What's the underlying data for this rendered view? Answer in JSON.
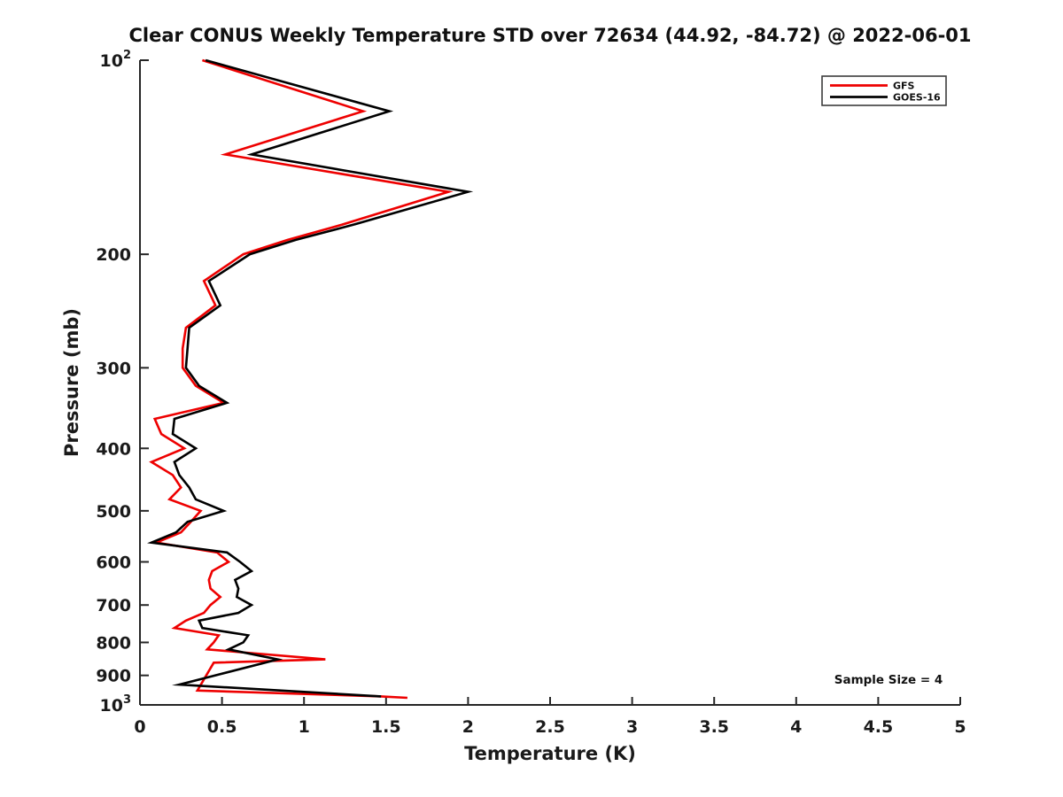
{
  "title": "Clear CONUS Weekly Temperature STD over 72634 (44.92, -84.72) @ 2022-06-01",
  "axes": {
    "x": {
      "label": "Temperature (K)"
    },
    "y": {
      "label": "Pressure (mb)"
    }
  },
  "legend": {
    "items": [
      {
        "label": "GFS",
        "color": "#ee0000"
      },
      {
        "label": "GOES-16",
        "color": "#000000"
      }
    ]
  },
  "annotation": {
    "text": "Sample Size = 4"
  },
  "colors": {
    "axis": "#262626",
    "tick_text": "#1a1a1a",
    "gfs_line": "#ee0000",
    "goes_line": "#000000",
    "legend_border": "#3c3c3c"
  },
  "chart_data": {
    "type": "line",
    "title": "Clear CONUS Weekly Temperature STD over 72634 (44.92, -84.72) @ 2022-06-01",
    "xlabel": "Temperature (K)",
    "ylabel": "Pressure (mb)",
    "xlim": [
      0,
      5
    ],
    "ylim": [
      100,
      1000
    ],
    "yscale": "log10-reversed",
    "grid": false,
    "legend_position": "top-right",
    "annotation": "Sample Size = 4",
    "xticks": [
      {
        "value": 0,
        "label": "0"
      },
      {
        "value": 0.5,
        "label": "0.5"
      },
      {
        "value": 1,
        "label": "1"
      },
      {
        "value": 1.5,
        "label": "1.5"
      },
      {
        "value": 2,
        "label": "2"
      },
      {
        "value": 2.5,
        "label": "2.5"
      },
      {
        "value": 3,
        "label": "3"
      },
      {
        "value": 3.5,
        "label": "3.5"
      },
      {
        "value": 4,
        "label": "4"
      },
      {
        "value": 4.5,
        "label": "4.5"
      },
      {
        "value": 5,
        "label": "5"
      }
    ],
    "yticks": [
      {
        "value": 100,
        "label": "10",
        "sup": "2"
      },
      {
        "value": 200,
        "label": "200"
      },
      {
        "value": 300,
        "label": "300"
      },
      {
        "value": 400,
        "label": "400"
      },
      {
        "value": 500,
        "label": "500"
      },
      {
        "value": 600,
        "label": "600"
      },
      {
        "value": 700,
        "label": "700"
      },
      {
        "value": 800,
        "label": "800"
      },
      {
        "value": 900,
        "label": "900"
      },
      {
        "value": 1000,
        "label": "10",
        "sup": "3"
      }
    ],
    "series": [
      {
        "name": "GFS",
        "color": "#ee0000",
        "points_format": "[pressure_mb, temperature_std_K]",
        "points": [
          [
            100,
            0.38
          ],
          [
            120,
            1.36
          ],
          [
            140,
            0.52
          ],
          [
            160,
            1.88
          ],
          [
            180,
            1.23
          ],
          [
            190,
            0.9
          ],
          [
            200,
            0.63
          ],
          [
            220,
            0.39
          ],
          [
            240,
            0.46
          ],
          [
            260,
            0.28
          ],
          [
            280,
            0.26
          ],
          [
            300,
            0.26
          ],
          [
            320,
            0.34
          ],
          [
            340,
            0.51
          ],
          [
            360,
            0.09
          ],
          [
            380,
            0.13
          ],
          [
            400,
            0.27
          ],
          [
            420,
            0.07
          ],
          [
            440,
            0.2
          ],
          [
            460,
            0.25
          ],
          [
            480,
            0.18
          ],
          [
            500,
            0.37
          ],
          [
            520,
            0.31
          ],
          [
            540,
            0.25
          ],
          [
            560,
            0.1
          ],
          [
            580,
            0.47
          ],
          [
            600,
            0.54
          ],
          [
            620,
            0.44
          ],
          [
            640,
            0.42
          ],
          [
            660,
            0.43
          ],
          [
            680,
            0.49
          ],
          [
            700,
            0.43
          ],
          [
            720,
            0.39
          ],
          [
            740,
            0.28
          ],
          [
            760,
            0.21
          ],
          [
            780,
            0.48
          ],
          [
            800,
            0.45
          ],
          [
            820,
            0.41
          ],
          [
            850,
            1.13
          ],
          [
            860,
            0.45
          ],
          [
            950,
            0.35
          ],
          [
            970,
            1.47
          ],
          [
            975,
            1.63
          ]
        ]
      },
      {
        "name": "GOES-16",
        "color": "#000000",
        "points_format": "[pressure_mb, temperature_std_K]",
        "points": [
          [
            100,
            0.4
          ],
          [
            120,
            1.52
          ],
          [
            140,
            0.68
          ],
          [
            160,
            2.0
          ],
          [
            180,
            1.3
          ],
          [
            190,
            0.95
          ],
          [
            200,
            0.67
          ],
          [
            220,
            0.42
          ],
          [
            240,
            0.49
          ],
          [
            260,
            0.3
          ],
          [
            280,
            0.29
          ],
          [
            300,
            0.28
          ],
          [
            320,
            0.36
          ],
          [
            340,
            0.53
          ],
          [
            360,
            0.21
          ],
          [
            380,
            0.2
          ],
          [
            400,
            0.34
          ],
          [
            420,
            0.21
          ],
          [
            440,
            0.24
          ],
          [
            460,
            0.3
          ],
          [
            480,
            0.34
          ],
          [
            500,
            0.51
          ],
          [
            520,
            0.29
          ],
          [
            540,
            0.22
          ],
          [
            560,
            0.07
          ],
          [
            580,
            0.53
          ],
          [
            600,
            0.61
          ],
          [
            620,
            0.68
          ],
          [
            640,
            0.58
          ],
          [
            660,
            0.6
          ],
          [
            680,
            0.59
          ],
          [
            700,
            0.68
          ],
          [
            720,
            0.6
          ],
          [
            740,
            0.36
          ],
          [
            760,
            0.38
          ],
          [
            780,
            0.66
          ],
          [
            800,
            0.63
          ],
          [
            820,
            0.54
          ],
          [
            850,
            0.84
          ],
          [
            930,
            0.24
          ],
          [
            970,
            1.47
          ]
        ]
      }
    ]
  }
}
